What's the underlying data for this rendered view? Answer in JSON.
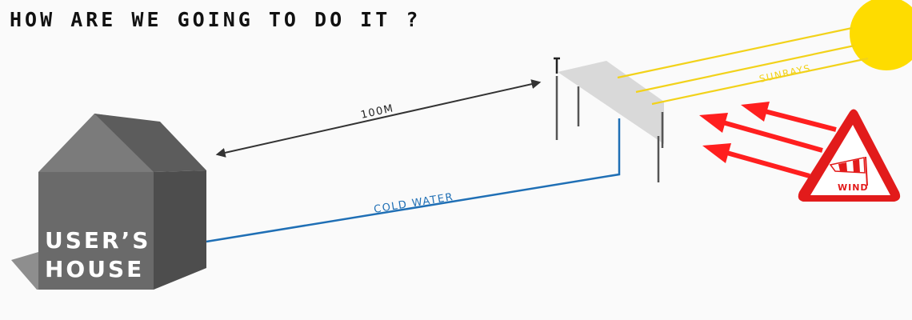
{
  "heading": "HOW ARE WE GOING TO DO IT ?",
  "house": {
    "label_line1": "USER’S",
    "label_line2": "HOUSE"
  },
  "distance_label": "100M",
  "pipe_label": "COLD WATER",
  "sun_label": "SUNRAYS",
  "wind_sign_label": "WIND",
  "colors": {
    "background": "#fafafa",
    "heading": "#111111",
    "house_front": "#6a6a6a",
    "house_side": "#4d4d4d",
    "house_roof_left": "#7b7b7b",
    "house_roof_right": "#5c5c5c",
    "house_shadow": "#8e8e8e",
    "distance_arrow": "#333333",
    "pipe": "#1f6fb5",
    "panel": "#d9d9d9",
    "panel_legs": "#555555",
    "sun": "#fedc00",
    "sunrays": "#f2d21a",
    "wind_arrows": "#ff1f1f",
    "wind_sign_border": "#e21b1b"
  },
  "icons": [
    "sun-icon",
    "windsock-icon",
    "wind-warning-sign-icon"
  ]
}
